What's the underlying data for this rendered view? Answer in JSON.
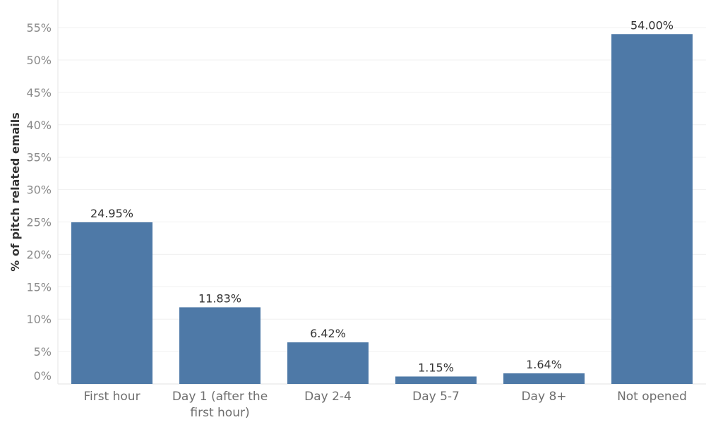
{
  "chart_data": {
    "type": "bar",
    "categories": [
      "First hour",
      [
        "Day 1 (after the",
        "first hour)"
      ],
      "Day 2-4",
      "Day 5-7",
      "Day 8+",
      "Not opened"
    ],
    "values": [
      24.95,
      11.83,
      6.42,
      1.15,
      1.64,
      54.0
    ],
    "data_labels": [
      "24.95%",
      "11.83%",
      "6.42%",
      "1.15%",
      "1.64%",
      "54.00%"
    ],
    "ylabel": "% of pitch related emails",
    "xlabel": "",
    "title": "",
    "ylim": [
      0,
      55
    ],
    "yticks": [
      "0%",
      "5%",
      "10%",
      "15%",
      "20%",
      "25%",
      "30%",
      "35%",
      "40%",
      "45%",
      "50%",
      "55%"
    ],
    "bar_color": "#4e79a7",
    "grid": true,
    "legend": "none"
  }
}
